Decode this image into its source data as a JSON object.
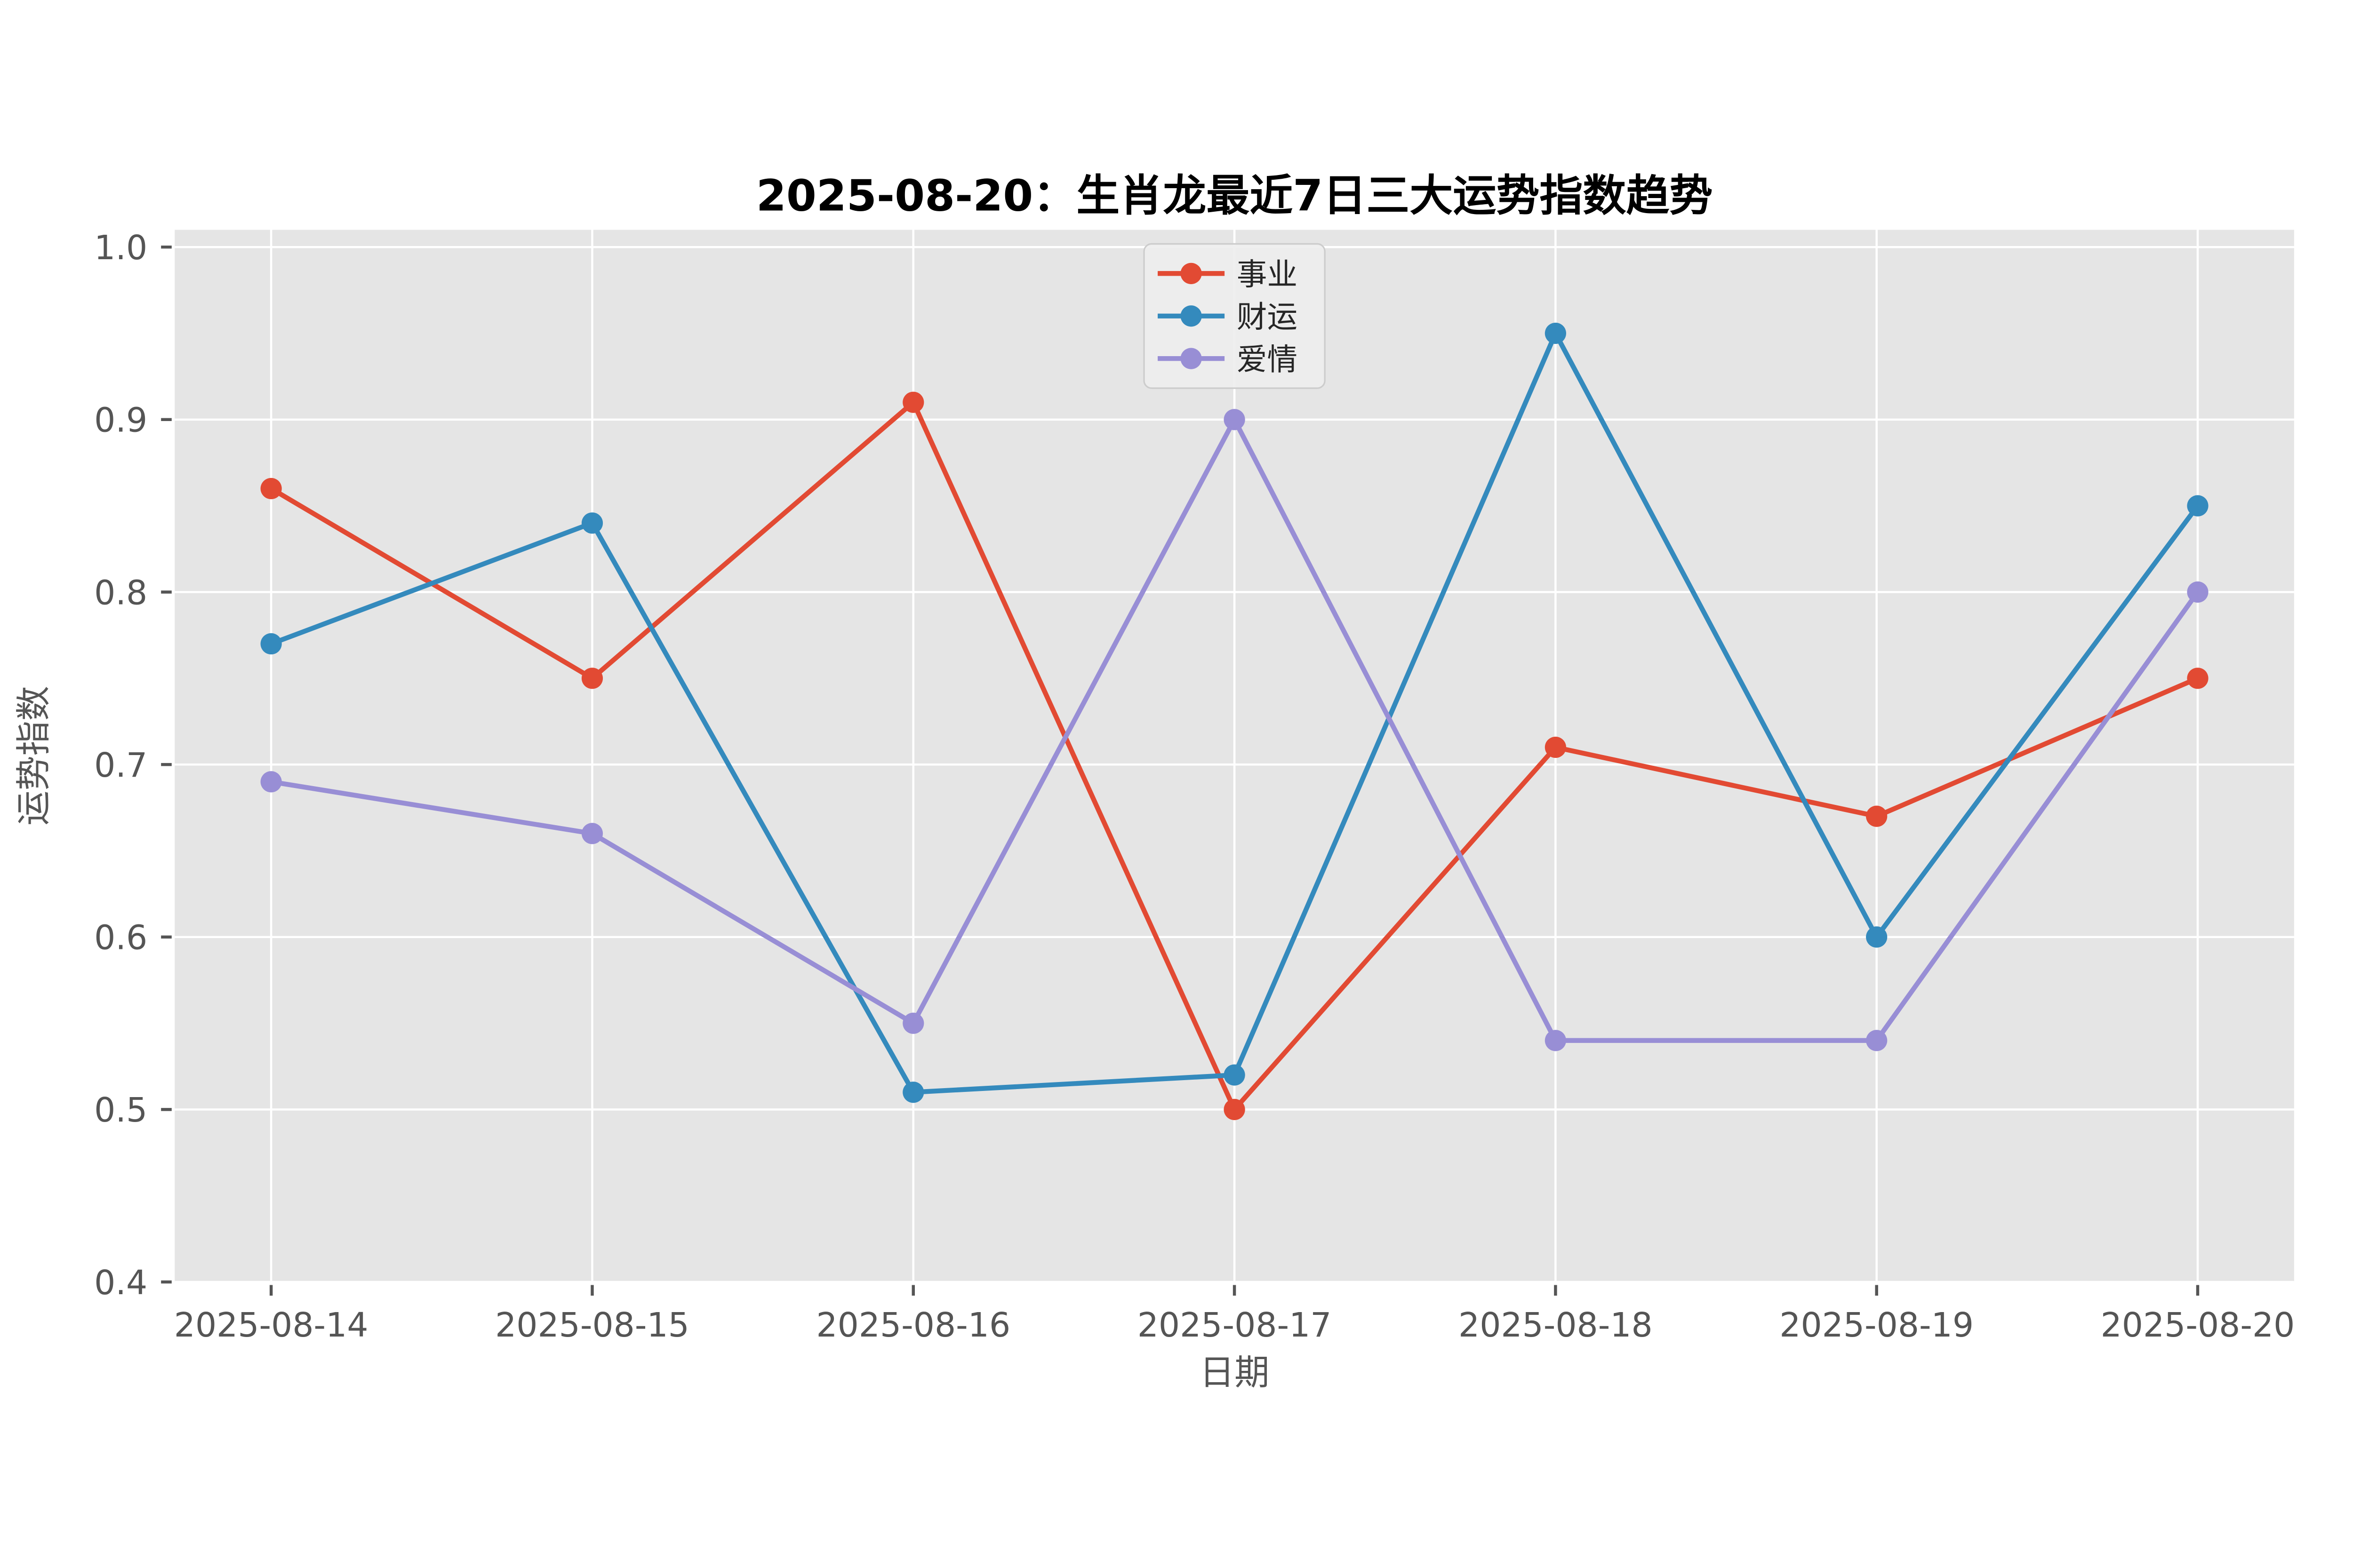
{
  "chart_data": {
    "type": "line",
    "title": "2025-08-20：生肖龙最近7日三大运势指数趋势",
    "xlabel": "日期",
    "ylabel": "运势指数",
    "categories": [
      "2025-08-14",
      "2025-08-15",
      "2025-08-16",
      "2025-08-17",
      "2025-08-18",
      "2025-08-19",
      "2025-08-20"
    ],
    "series": [
      {
        "name": "事业",
        "color": "#E24A33",
        "values": [
          0.86,
          0.75,
          0.91,
          0.5,
          0.71,
          0.67,
          0.75
        ]
      },
      {
        "name": "财运",
        "color": "#348ABD",
        "values": [
          0.77,
          0.84,
          0.51,
          0.52,
          0.95,
          0.6,
          0.85
        ]
      },
      {
        "name": "爱情",
        "color": "#988ED5",
        "values": [
          0.69,
          0.66,
          0.55,
          0.9,
          0.54,
          0.54,
          0.8
        ]
      }
    ],
    "yticks": [
      0.4,
      0.5,
      0.6,
      0.7,
      0.8,
      0.9,
      1.0
    ],
    "ytick_labels": [
      "0.4",
      "0.5",
      "0.6",
      "0.7",
      "0.8",
      "0.9",
      "1.0"
    ],
    "ylim": [
      0.4,
      1.01
    ],
    "grid": true,
    "legend_position": "upper center",
    "colors": {
      "plot_background": "#E5E5E5",
      "grid": "#FFFFFF",
      "tick_text": "#555555",
      "title_text": "#000000",
      "legend_background": "#EDEDED",
      "legend_border": "#CCCCCC"
    }
  }
}
